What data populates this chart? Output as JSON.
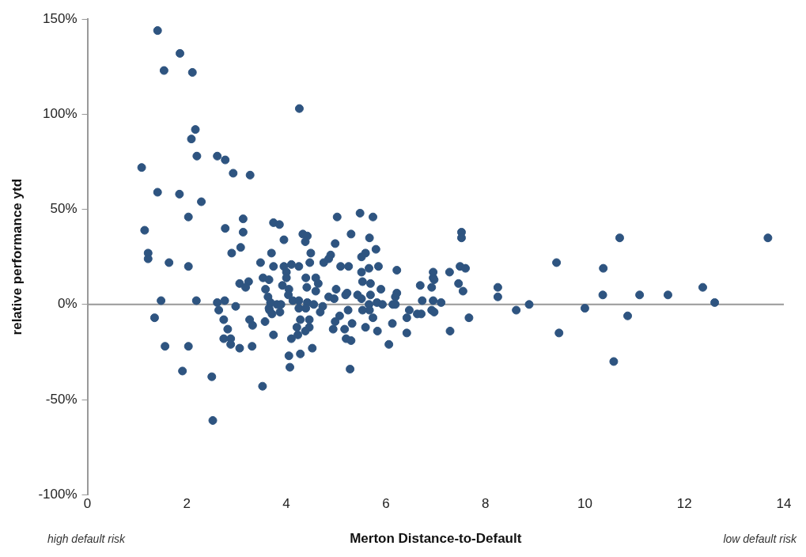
{
  "chart_data": {
    "type": "scatter",
    "xlabel": "Merton Distance-to-Default",
    "ylabel": "relative performance ytd",
    "annotations": [
      "high default risk",
      "low default risk"
    ],
    "xlim": [
      0,
      14
    ],
    "xticks": [
      0,
      2,
      4,
      6,
      8,
      10,
      12,
      14
    ],
    "ylim": [
      -100,
      150
    ],
    "yticks": [
      {
        "value": -100,
        "label": "-100%"
      },
      {
        "value": -50,
        "label": "-50%"
      },
      {
        "value": 0,
        "label": "0%"
      },
      {
        "value": 50,
        "label": "50%"
      },
      {
        "value": 100,
        "label": "100%"
      },
      {
        "value": 150,
        "label": "150%"
      }
    ],
    "grid": false,
    "legend": false,
    "marker": "circle",
    "ref_lines": [
      {
        "axis": "y",
        "value": 0,
        "color": "#999999"
      }
    ],
    "series": [
      {
        "color": "#2e5480",
        "x": [
          1.41,
          1.86,
          1.54,
          2.11,
          2.17,
          2.09,
          2.2,
          2.61,
          2.77,
          2.93,
          3.27,
          1.09,
          1.41,
          1.85,
          2.29,
          2.03,
          1.15,
          2.77,
          3.13,
          1.22,
          1.22,
          1.64,
          2.03,
          1.48,
          2.19,
          1.35,
          1.56,
          2.03,
          1.91,
          2.5,
          2.52,
          3.52,
          3.13,
          3.08,
          2.9,
          3.48,
          3.7,
          3.74,
          3.06,
          3.24,
          3.18,
          3.53,
          3.65,
          3.58,
          3.63,
          2.61,
          2.76,
          2.98,
          2.64,
          2.74,
          2.82,
          2.74,
          2.88,
          2.88,
          3.06,
          3.31,
          3.26,
          3.32,
          3.57,
          3.65,
          3.74,
          4.26,
          5.48,
          5.74,
          5.02,
          3.74,
          3.86,
          4.33,
          4.42,
          5.3,
          5.67,
          3.95,
          4.38,
          4.98,
          4.49,
          5.8,
          5.59,
          5.51,
          4.89,
          4.85,
          4.75,
          4.47,
          3.95,
          4.1,
          4.25,
          5.09,
          5.25,
          5.85,
          4.0,
          5.51,
          5.66,
          4.0,
          4.39,
          4.59,
          4.64,
          4.41,
          3.92,
          4.05,
          5.53,
          5.69,
          5.0,
          4.59,
          5.9,
          5.22,
          5.43,
          4.04,
          5.19,
          5.51,
          5.69,
          4.85,
          4.96,
          4.13,
          4.25,
          4.42,
          4.55,
          3.68,
          3.81,
          3.89,
          4.25,
          4.39,
          4.73,
          4.68,
          5.66,
          5.82,
          5.93,
          6.14,
          3.66,
          3.71,
          3.87,
          5.24,
          5.53,
          5.67,
          4.28,
          4.46,
          5.07,
          5.74,
          4.21,
          4.46,
          4.38,
          4.98,
          4.94,
          5.32,
          5.17,
          5.59,
          5.83,
          6.13,
          4.23,
          4.1,
          5.2,
          5.3,
          4.52,
          4.28,
          4.05,
          4.07,
          5.28,
          6.06,
          7.52,
          7.52,
          6.22,
          6.95,
          6.95,
          6.97,
          7.28,
          7.49,
          7.6,
          6.69,
          6.92,
          7.46,
          7.55,
          8.25,
          8.25,
          6.22,
          6.19,
          6.73,
          6.95,
          7.11,
          6.19,
          6.47,
          6.63,
          6.71,
          6.92,
          6.97,
          6.42,
          7.67,
          8.62,
          6.42,
          7.29,
          10.7,
          13.68,
          9.43,
          10.37,
          12.37,
          10.36,
          11.1,
          11.67,
          12.61,
          8.88,
          10.0,
          10.86,
          9.48,
          10.58
        ],
        "values": [
          144,
          132,
          123,
          122,
          92,
          87,
          78,
          78,
          76,
          69,
          68,
          72,
          59,
          58,
          54,
          46,
          39,
          40,
          45,
          27,
          24,
          22,
          20,
          2,
          2,
          -7,
          -22,
          -22,
          -35,
          -38,
          -61,
          -43,
          38,
          30,
          27,
          22,
          27,
          20,
          11,
          12,
          9,
          14,
          13,
          8,
          4,
          1,
          2,
          -1,
          -3,
          -8,
          -13,
          -18,
          -18,
          -21,
          -23,
          -22,
          -8,
          -11,
          -9,
          -2,
          -16,
          103,
          48,
          46,
          46,
          43,
          42,
          37,
          36,
          37,
          35,
          34,
          33,
          32,
          27,
          29,
          27,
          25,
          26,
          24,
          22,
          22,
          20,
          21,
          20,
          20,
          20,
          20,
          17,
          17,
          19,
          14,
          14,
          14,
          11,
          9,
          10,
          8,
          12,
          11,
          8,
          7,
          8,
          6,
          5,
          5,
          5,
          3,
          5,
          4,
          3,
          2,
          2,
          1,
          0,
          1,
          0,
          0,
          -2,
          -2,
          -1,
          -4,
          0,
          1,
          0,
          0,
          -3,
          -5,
          -4,
          -3,
          -3,
          -3,
          -8,
          -8,
          -6,
          -7,
          -12,
          -12,
          -14,
          -9,
          -13,
          -10,
          -13,
          -12,
          -14,
          -10,
          -16,
          -18,
          -18,
          -19,
          -23,
          -26,
          -27,
          -33,
          -34,
          -21,
          38,
          35,
          18,
          17,
          14,
          13,
          17,
          20,
          19,
          10,
          9,
          11,
          7,
          9,
          4,
          6,
          4,
          2,
          2,
          1,
          0,
          -3,
          -5,
          -5,
          -3,
          -4,
          -7,
          -7,
          -3,
          -15,
          -14,
          35,
          35,
          22,
          19,
          9,
          5,
          5,
          5,
          1,
          0,
          -2,
          -6,
          -15,
          -30
        ]
      }
    ]
  }
}
